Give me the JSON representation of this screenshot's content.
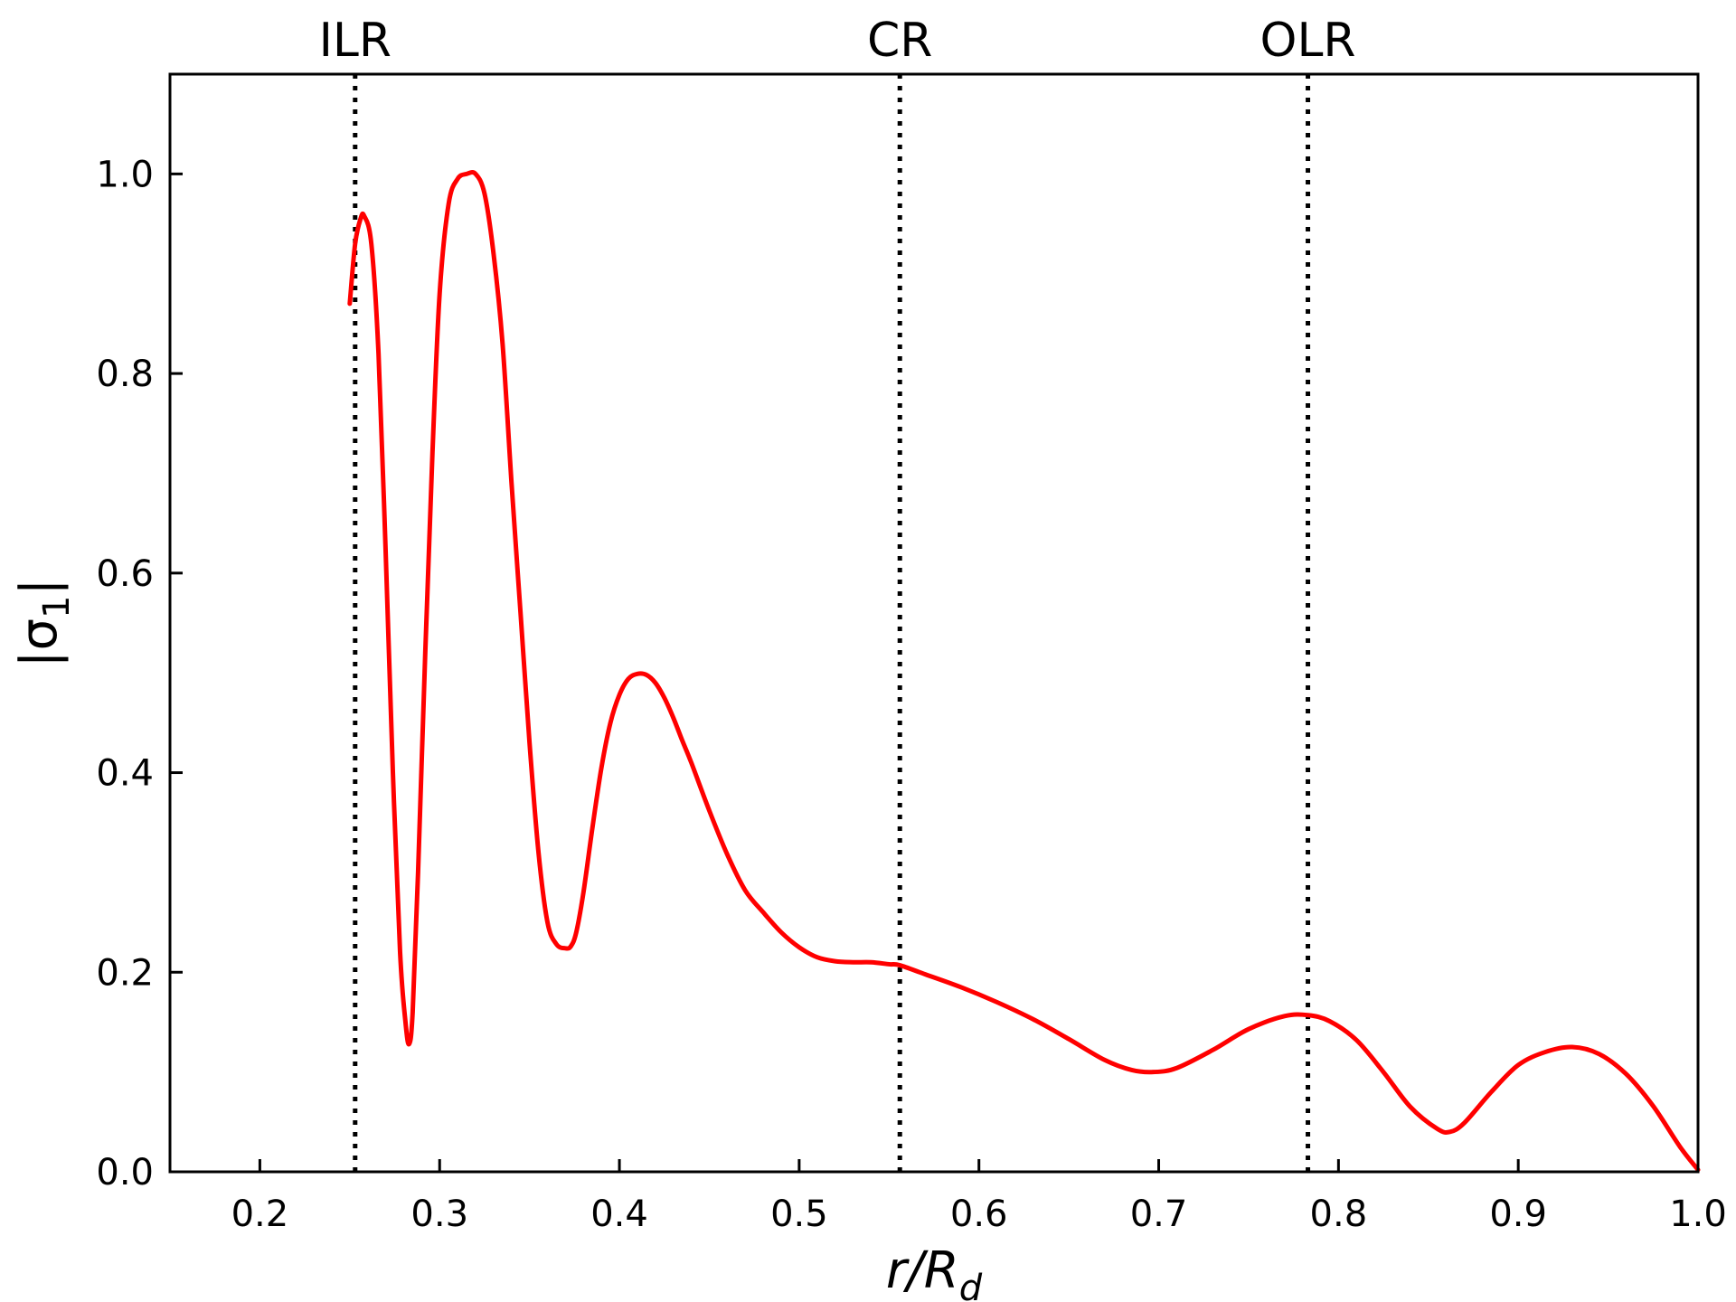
{
  "chart_data": {
    "type": "line",
    "xlabel": {
      "main": "r/R",
      "sub": "d"
    },
    "ylabel": {
      "main": "|σ",
      "sub": "1",
      "close": "|"
    },
    "xlim": [
      0.15,
      1.0
    ],
    "ylim": [
      0.0,
      1.1
    ],
    "xticks": [
      0.2,
      0.3,
      0.4,
      0.5,
      0.6,
      0.7,
      0.8,
      0.9,
      1.0
    ],
    "xtick_labels": [
      "0.2",
      "0.3",
      "0.4",
      "0.5",
      "0.6",
      "0.7",
      "0.8",
      "0.9",
      "1.0"
    ],
    "yticks": [
      0.0,
      0.2,
      0.4,
      0.6,
      0.8,
      1.0
    ],
    "ytick_labels": [
      "0.0",
      "0.2",
      "0.4",
      "0.6",
      "0.8",
      "1.0"
    ],
    "grid": false,
    "line_color": "#ff0000",
    "resonances": [
      {
        "label": "ILR",
        "x": 0.253
      },
      {
        "label": "CR",
        "x": 0.556
      },
      {
        "label": "OLR",
        "x": 0.783
      }
    ],
    "series": [
      {
        "x": [
          0.25,
          0.253,
          0.256,
          0.258,
          0.262,
          0.266,
          0.27,
          0.274,
          0.278,
          0.281,
          0.283,
          0.285,
          0.288,
          0.292,
          0.296,
          0.3,
          0.305,
          0.31,
          0.315,
          0.32,
          0.325,
          0.33,
          0.335,
          0.34,
          0.345,
          0.35,
          0.355,
          0.36,
          0.365,
          0.37,
          0.373,
          0.376,
          0.38,
          0.385,
          0.39,
          0.395,
          0.4,
          0.405,
          0.41,
          0.415,
          0.42,
          0.425,
          0.43,
          0.435,
          0.44,
          0.45,
          0.46,
          0.47,
          0.48,
          0.49,
          0.5,
          0.51,
          0.52,
          0.53,
          0.54,
          0.55,
          0.556,
          0.57,
          0.59,
          0.61,
          0.63,
          0.65,
          0.67,
          0.685,
          0.697,
          0.71,
          0.73,
          0.75,
          0.77,
          0.783,
          0.795,
          0.81,
          0.825,
          0.84,
          0.855,
          0.862,
          0.87,
          0.885,
          0.9,
          0.915,
          0.93,
          0.945,
          0.96,
          0.975,
          0.99,
          1.0
        ],
        "y": [
          0.87,
          0.93,
          0.955,
          0.958,
          0.93,
          0.82,
          0.62,
          0.4,
          0.22,
          0.15,
          0.128,
          0.16,
          0.3,
          0.52,
          0.72,
          0.88,
          0.97,
          0.995,
          1.0,
          1.0,
          0.98,
          0.92,
          0.83,
          0.69,
          0.56,
          0.43,
          0.32,
          0.25,
          0.228,
          0.224,
          0.226,
          0.24,
          0.28,
          0.345,
          0.405,
          0.45,
          0.478,
          0.494,
          0.499,
          0.498,
          0.49,
          0.475,
          0.455,
          0.432,
          0.41,
          0.362,
          0.318,
          0.282,
          0.26,
          0.24,
          0.225,
          0.215,
          0.211,
          0.21,
          0.21,
          0.208,
          0.207,
          0.198,
          0.185,
          0.17,
          0.153,
          0.133,
          0.112,
          0.102,
          0.1,
          0.104,
          0.122,
          0.143,
          0.156,
          0.157,
          0.151,
          0.132,
          0.1,
          0.065,
          0.043,
          0.04,
          0.049,
          0.08,
          0.107,
          0.12,
          0.125,
          0.118,
          0.098,
          0.066,
          0.025,
          0.002
        ]
      }
    ]
  }
}
